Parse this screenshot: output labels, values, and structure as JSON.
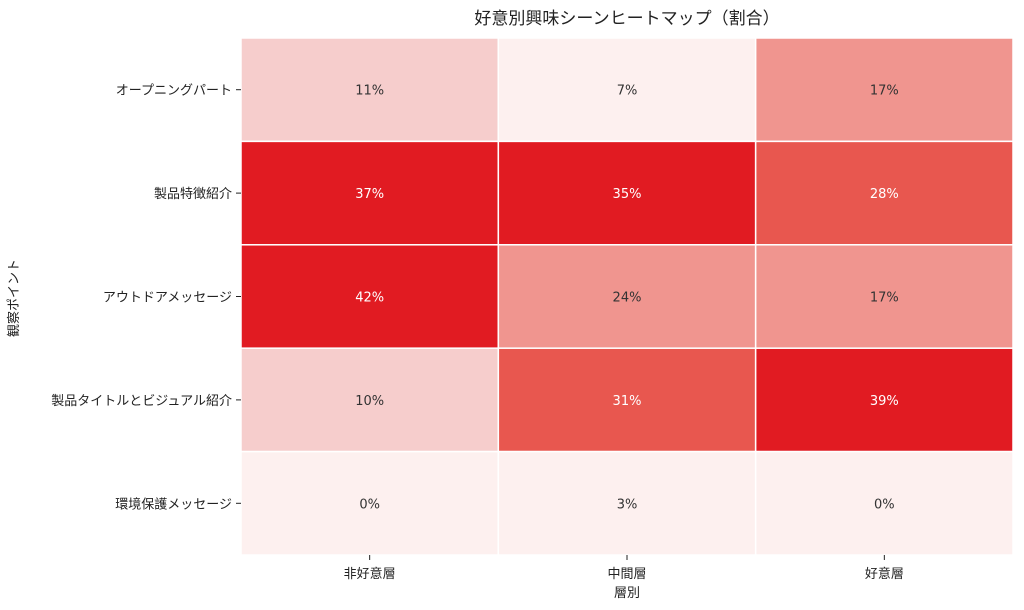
{
  "chart_data": {
    "type": "heatmap",
    "title": "好意別興味シーンヒートマップ（割合）",
    "xlabel": "層別",
    "ylabel": "観察ポイント",
    "x_categories": [
      "非好意層",
      "中間層",
      "好意層"
    ],
    "y_categories": [
      "オープニングパート",
      "製品特徴紹介",
      "アウトドアメッセージ",
      "製品タイトルとビジュアル紹介",
      "環境保護メッセージ"
    ],
    "values": [
      [
        11,
        7,
        17
      ],
      [
        37,
        35,
        28
      ],
      [
        42,
        24,
        17
      ],
      [
        10,
        31,
        39
      ],
      [
        0,
        3,
        0
      ]
    ],
    "cell_labels": [
      [
        "11%",
        "7%",
        "17%"
      ],
      [
        "37%",
        "35%",
        "28%"
      ],
      [
        "42%",
        "24%",
        "17%"
      ],
      [
        "10%",
        "31%",
        "39%"
      ],
      [
        "0%",
        "3%",
        "0%"
      ]
    ],
    "color_scale": {
      "low": "#fdf0ef",
      "mid_low": "#f6cdcc",
      "mid": "#f0958f",
      "mid_high": "#e8574f",
      "high": "#e11b22"
    },
    "text_colors": {
      "dark": "#333333",
      "light": "#ffffff"
    },
    "colorbar": false
  }
}
